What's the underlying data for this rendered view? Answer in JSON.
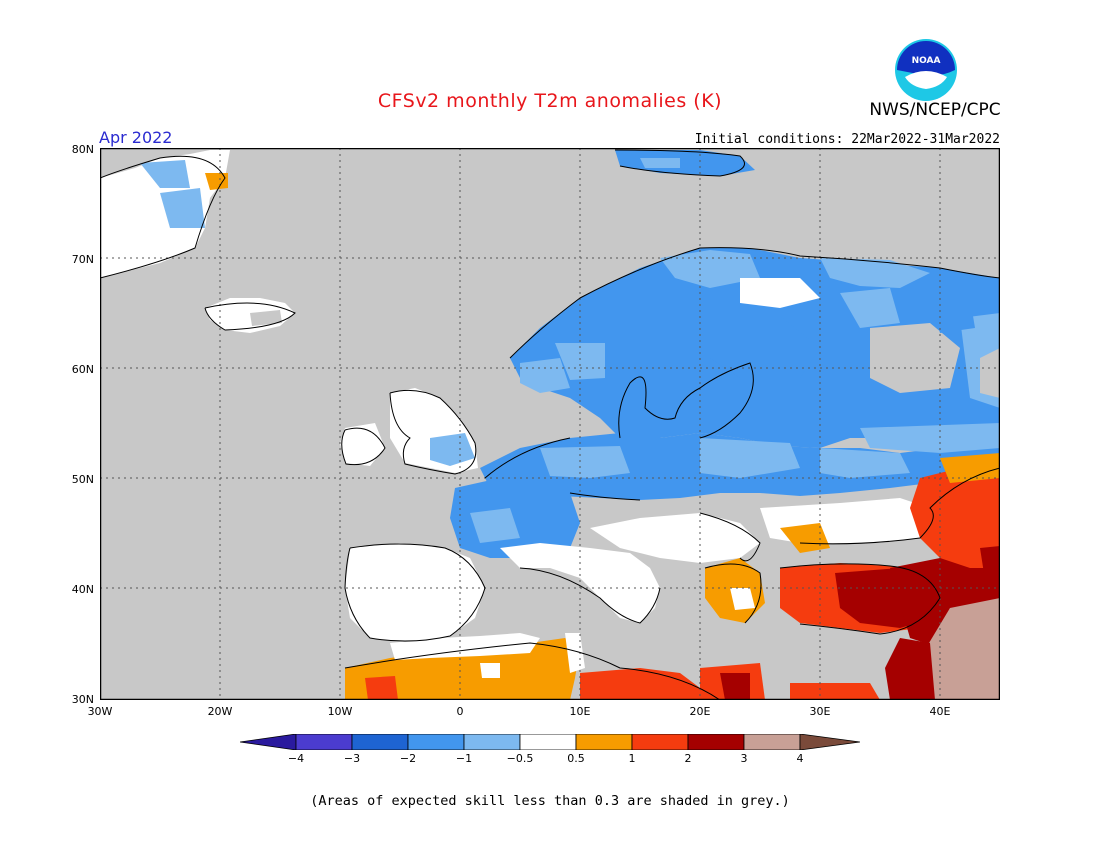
{
  "header": {
    "title": "CFSv2 monthly T2m anomalies (K)",
    "agency": "NWS/NCEP/CPC",
    "logo_text": "NOAA",
    "month": "Apr 2022",
    "initial_conditions": "Initial conditions: 22Mar2022-31Mar2022"
  },
  "map": {
    "lat_labels": [
      "80N",
      "70N",
      "60N",
      "50N",
      "40N",
      "30N"
    ],
    "lon_labels": [
      "30W",
      "20W",
      "10W",
      "0",
      "10E",
      "20E",
      "30E",
      "40E"
    ],
    "lon_range": [
      -30,
      45
    ],
    "lat_range": [
      30,
      80
    ],
    "grid": true,
    "colors": {
      "ocean_grey": "#c8c8c8",
      "white": "#ffffff",
      "blue_light": "#7db9f0",
      "blue_mid": "#4296ee",
      "blue_dark": "#1e64d2",
      "orange": "#f79c00",
      "red_orange": "#f53c0f",
      "dark_red": "#a50000",
      "tan": "#c8a096"
    }
  },
  "colorbar": {
    "labels": [
      "−4",
      "−3",
      "−2",
      "−1",
      "−0.5",
      "0.5",
      "1",
      "2",
      "3",
      "4"
    ],
    "colors": [
      "#2a1a9e",
      "#4b3ccf",
      "#1e64d2",
      "#4296ee",
      "#7db9f0",
      "#ffffff",
      "#f79c00",
      "#f53c0f",
      "#a50000",
      "#c8a096",
      "#7a4a3a"
    ]
  },
  "note": "(Areas of expected skill less than 0.3 are shaded in grey.)"
}
